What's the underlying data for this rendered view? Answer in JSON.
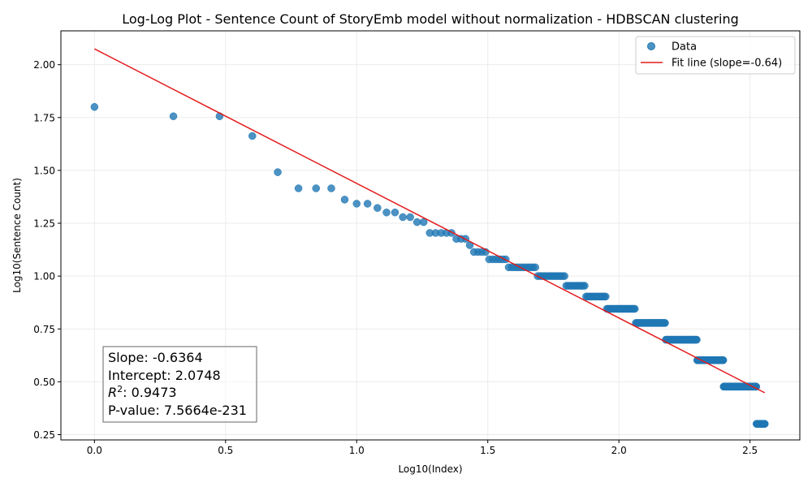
{
  "chart_data": {
    "type": "scatter",
    "title": "Log-Log Plot - Sentence Count of StoryEmb model without normalization - HDBSCAN clustering",
    "xlabel": "Log10(Index)",
    "ylabel": "Log10(Sentence Count)",
    "xlim": [
      -0.128,
      2.69
    ],
    "ylim": [
      0.225,
      2.16
    ],
    "xticks": [
      0.0,
      0.5,
      1.0,
      1.5,
      2.0,
      2.5
    ],
    "xtick_labels": [
      "0.0",
      "0.5",
      "1.0",
      "1.5",
      "2.0",
      "2.5"
    ],
    "yticks": [
      0.25,
      0.5,
      0.75,
      1.0,
      1.25,
      1.5,
      1.75,
      2.0
    ],
    "ytick_labels": [
      "0.25",
      "0.50",
      "0.75",
      "1.00",
      "1.25",
      "1.50",
      "1.75",
      "2.00"
    ],
    "grid": true,
    "legend_position": "top-right",
    "scatter_series": {
      "name": "Data",
      "color": "#1f77b4",
      "runs": [
        {
          "y": 1.8,
          "i1": 1,
          "i2": 1
        },
        {
          "y": 1.7559,
          "i1": 2,
          "i2": 3
        },
        {
          "y": 1.6628,
          "i1": 4,
          "i2": 4
        },
        {
          "y": 1.4914,
          "i1": 5,
          "i2": 5
        },
        {
          "y": 1.415,
          "i1": 6,
          "i2": 8
        },
        {
          "y": 1.3617,
          "i1": 9,
          "i2": 9
        },
        {
          "y": 1.3424,
          "i1": 10,
          "i2": 11
        },
        {
          "y": 1.3222,
          "i1": 12,
          "i2": 12
        },
        {
          "y": 1.301,
          "i1": 13,
          "i2": 14
        },
        {
          "y": 1.2788,
          "i1": 15,
          "i2": 16
        },
        {
          "y": 1.2553,
          "i1": 17,
          "i2": 18
        },
        {
          "y": 1.2041,
          "i1": 19,
          "i2": 23
        },
        {
          "y": 1.1761,
          "i1": 24,
          "i2": 26
        },
        {
          "y": 1.1461,
          "i1": 27,
          "i2": 27
        },
        {
          "y": 1.1139,
          "i1": 28,
          "i2": 31
        },
        {
          "y": 1.0792,
          "i1": 32,
          "i2": 37
        },
        {
          "y": 1.0414,
          "i1": 38,
          "i2": 48
        },
        {
          "y": 1.0,
          "i1": 49,
          "i2": 62
        },
        {
          "y": 0.9542,
          "i1": 63,
          "i2": 74
        },
        {
          "y": 0.9031,
          "i1": 75,
          "i2": 89
        },
        {
          "y": 0.8451,
          "i1": 90,
          "i2": 115
        },
        {
          "y": 0.7782,
          "i1": 116,
          "i2": 150
        },
        {
          "y": 0.699,
          "i1": 151,
          "i2": 198
        },
        {
          "y": 0.6021,
          "i1": 199,
          "i2": 250
        },
        {
          "y": 0.4771,
          "i1": 251,
          "i2": 334
        },
        {
          "y": 0.301,
          "i1": 335,
          "i2": 360
        }
      ]
    },
    "fit_line": {
      "name": "Fit line (slope=-0.64)",
      "color": "#e31a1c",
      "slope": -0.6364,
      "intercept": 2.0748,
      "x_range": [
        0.0,
        2.556
      ]
    },
    "legend": [
      {
        "label": "Data",
        "kind": "marker"
      },
      {
        "label": "Fit line (slope=-0.64)",
        "kind": "line"
      }
    ],
    "stats": {
      "slope_text": "Slope: -0.6364",
      "intercept_text": "Intercept: 2.0748",
      "r2_prefix": "R",
      "r2_sup": "2",
      "r2_value": ": 0.9473",
      "pvalue_text": "P-value: 7.5664e-231"
    }
  }
}
